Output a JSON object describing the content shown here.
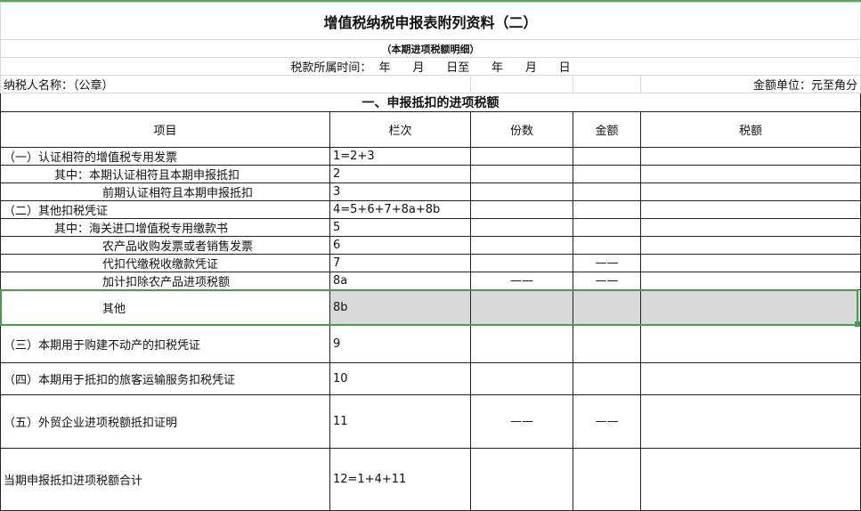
{
  "title": "增值税纳税申报表附列资料（二）",
  "subtitle": "（本期进项税额明细）",
  "period": "税款所属时间：  年      月      日至      年      月      日",
  "taxpayer": "纳税人名称：（公章）",
  "unit": "金额单位：元至角分",
  "section": "一、申报抵扣的进项税额",
  "headers": [
    "项目",
    "栏次",
    "份数",
    "金额",
    "税额"
  ],
  "rows": [
    {
      "item": "（一）认证相符的增值税专用发票",
      "col": "1=2+3",
      "count": "",
      "amount": "",
      "tax": "",
      "indent": 0
    },
    {
      "item": "其中：本期认证相符且本期申报抵扣",
      "col": "2",
      "count": "",
      "amount": "",
      "tax": "",
      "indent": 1
    },
    {
      "item": "前期认证相符且本期申报抵扣",
      "col": "3",
      "count": "",
      "amount": "",
      "tax": "",
      "indent": 2
    },
    {
      "item": "（二）其他扣税凭证",
      "col": "4=5+6+7+8a+8b",
      "count": "",
      "amount": "",
      "tax": "",
      "indent": 0
    },
    {
      "item": "其中：海关进口增值税专用缴款书",
      "col": "5",
      "count": "",
      "amount": "",
      "tax": "",
      "indent": 1
    },
    {
      "item": "农产品收购发票或者销售发票",
      "col": "6",
      "count": "",
      "amount": "",
      "tax": "",
      "indent": 2
    },
    {
      "item": "代扣代缴税收缴款凭证",
      "col": "7",
      "count": "",
      "amount": "——",
      "tax": "",
      "indent": 2
    },
    {
      "item": "加计扣除农产品进项税额",
      "col": "8a",
      "count": "——",
      "amount": "——",
      "tax": "",
      "indent": 2
    },
    {
      "item": "其他",
      "col": "8b",
      "count": "",
      "amount": "",
      "tax": "",
      "indent": 2
    },
    {
      "item": "（三）本期用于购建不动产的扣税凭证",
      "col": "9",
      "count": "",
      "amount": "",
      "tax": "",
      "indent": 0
    },
    {
      "item": "（四）本期用于抵扣的旅客运输服务扣税凭证",
      "col": "10",
      "count": "",
      "amount": "",
      "tax": "",
      "indent": 0
    },
    {
      "item": "（五）外贸企业进项税额抵扣证明",
      "col": "11",
      "count": "——",
      "amount": "——",
      "tax": "",
      "indent": 0
    },
    {
      "item": "当期申报抵扣进项税额合计",
      "col": "12=1+4+11",
      "count": "",
      "amount": "",
      "tax": "",
      "indent": 0
    }
  ],
  "selection_color": "#43a047"
}
